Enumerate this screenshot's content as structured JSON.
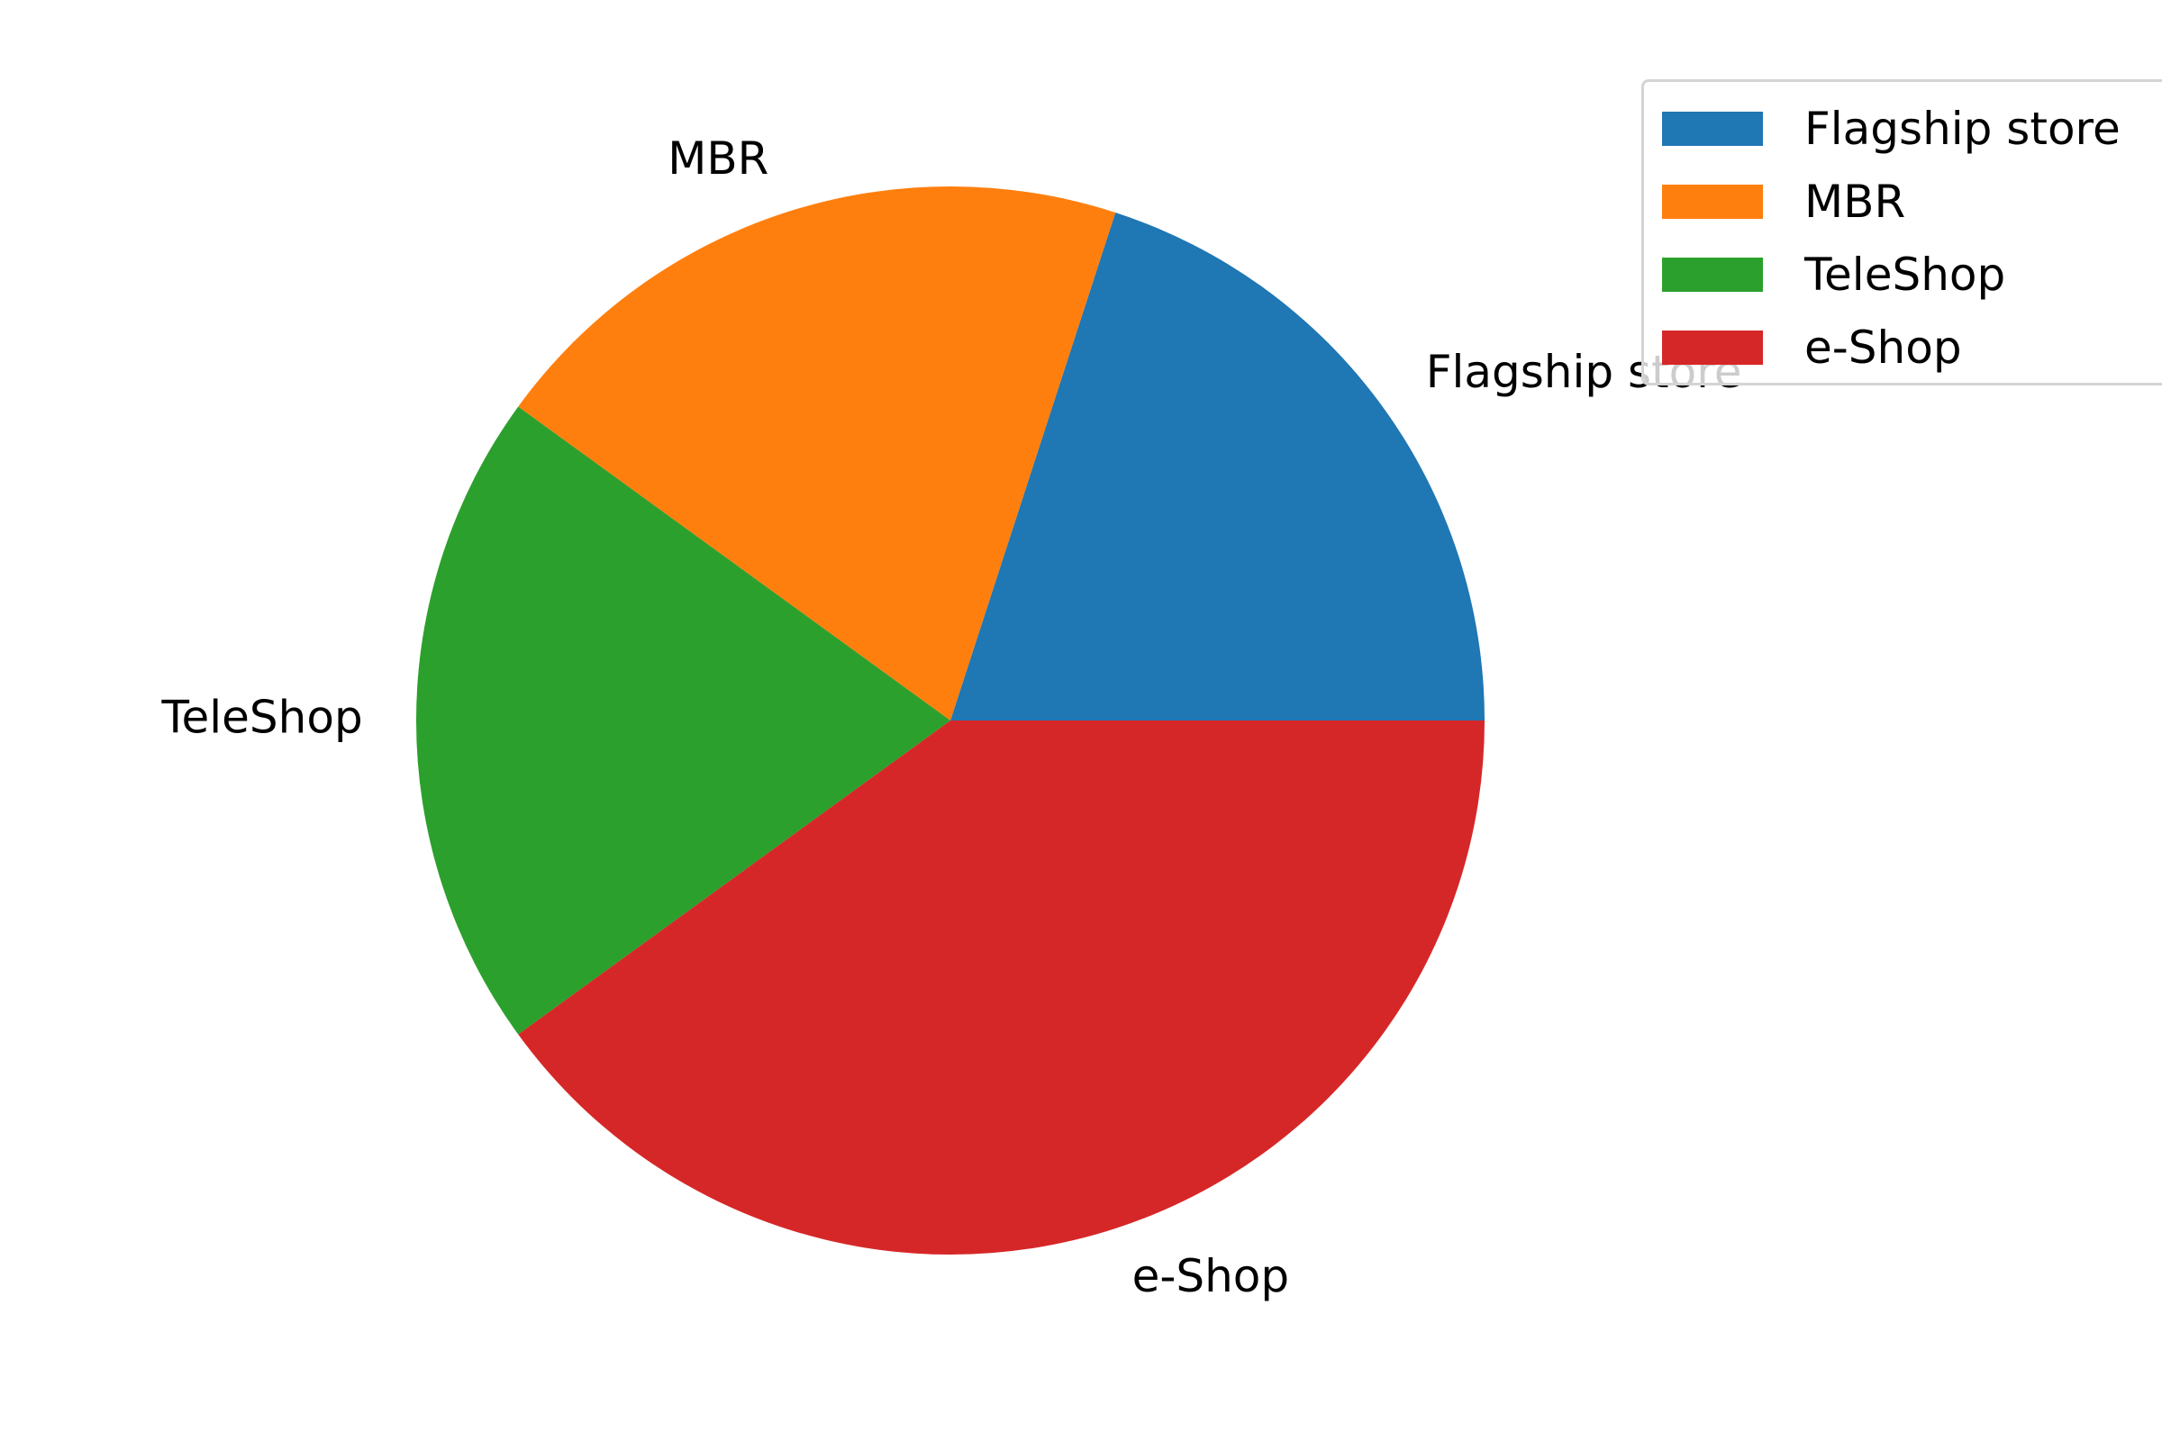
{
  "chart_data": {
    "type": "pie",
    "categories": [
      "Flagship store",
      "MBR",
      "TeleShop",
      "e-Shop"
    ],
    "values": [
      20,
      20,
      20,
      40
    ],
    "colors": [
      "#1f77b4",
      "#ff7f0e",
      "#2ca02c",
      "#d62728"
    ],
    "start_angle": 0,
    "direction": "counterclockwise",
    "legend": {
      "entries": [
        "Flagship store",
        "MBR",
        "TeleShop",
        "e-Shop"
      ],
      "placement": "top-right"
    }
  }
}
